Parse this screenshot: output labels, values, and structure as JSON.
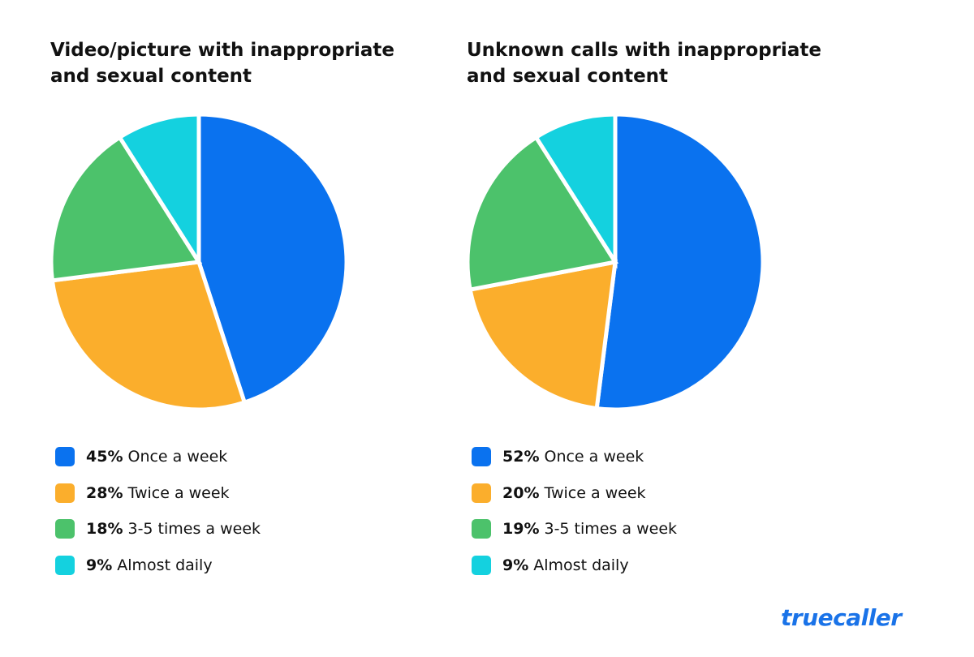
{
  "chart_data": [
    {
      "type": "pie",
      "title": "Video/picture with inappropriate and sexual content",
      "categories": [
        "Once a week",
        "Twice a week",
        "3-5 times a week",
        "Almost daily"
      ],
      "values": [
        45,
        28,
        18,
        9
      ],
      "value_labels": [
        "45%",
        "28%",
        "18%",
        "9%"
      ],
      "colors": [
        "#0a72ef",
        "#fbae2c",
        "#4cc26b",
        "#14d1df"
      ]
    },
    {
      "type": "pie",
      "title": "Unknown calls with inappropriate and sexual content",
      "categories": [
        "Once a week",
        "Twice a week",
        "3-5 times a week",
        "Almost daily"
      ],
      "values": [
        52,
        20,
        19,
        9
      ],
      "value_labels": [
        "52%",
        "20%",
        "19%",
        "9%"
      ],
      "colors": [
        "#0a72ef",
        "#fbae2c",
        "#4cc26b",
        "#14d1df"
      ]
    }
  ],
  "brand": "truecaller"
}
